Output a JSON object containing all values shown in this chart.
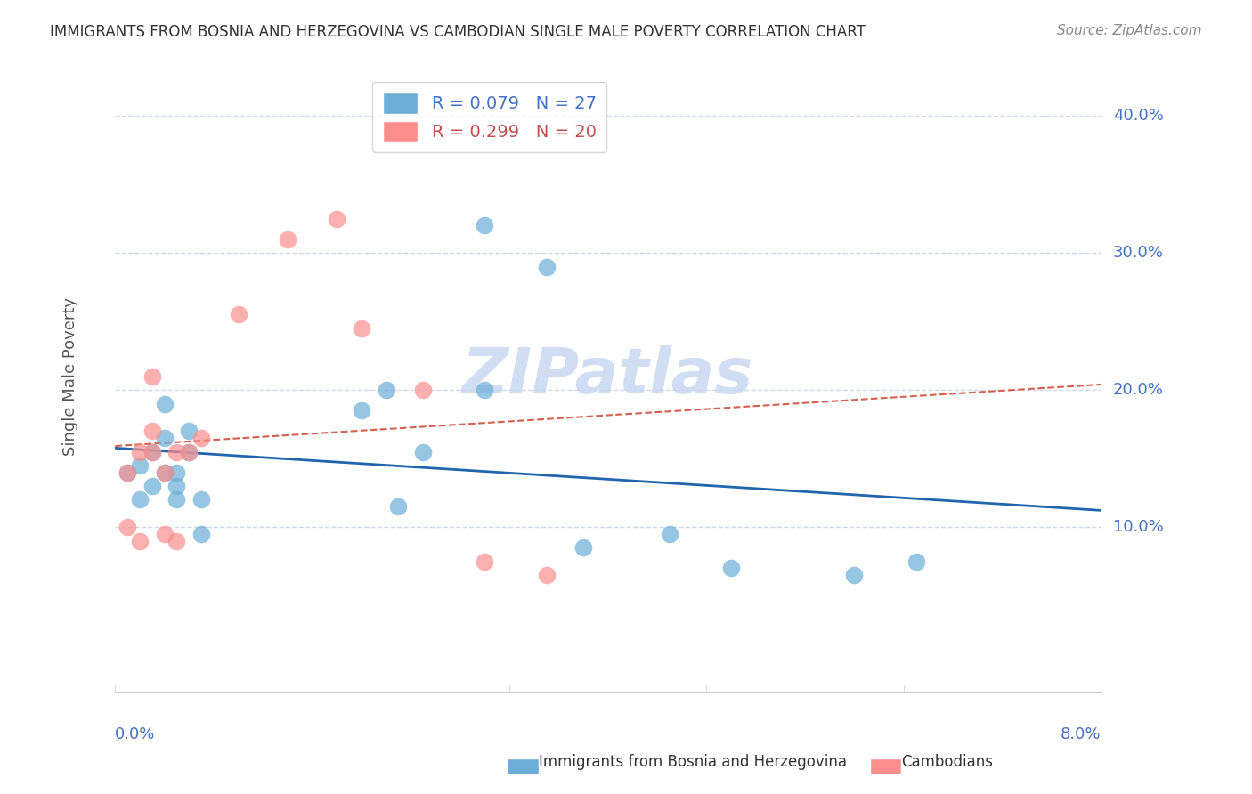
{
  "title": "IMMIGRANTS FROM BOSNIA AND HERZEGOVINA VS CAMBODIAN SINGLE MALE POVERTY CORRELATION CHART",
  "source": "Source: ZipAtlas.com",
  "xlabel_bottom_left": "0.0%",
  "xlabel_bottom_right": "8.0%",
  "ylabel": "Single Male Poverty",
  "y_tick_labels": [
    "10.0%",
    "20.0%",
    "30.0%",
    "40.0%"
  ],
  "y_tick_values": [
    0.1,
    0.2,
    0.3,
    0.4
  ],
  "x_min": 0.0,
  "x_max": 0.08,
  "y_min": -0.02,
  "y_max": 0.44,
  "blue_color": "#6baed6",
  "pink_color": "#fc8d8d",
  "blue_line_color": "#2166ac",
  "pink_line_color": "#d6604d",
  "grid_color": "#d0d8e8",
  "watermark_color": "#c8d8f0",
  "legend_text_blue": "#4472c4",
  "legend_text_pink": "#c0504d",
  "R_blue": 0.079,
  "N_blue": 27,
  "R_pink": 0.299,
  "N_pink": 20,
  "blue_x": [
    0.001,
    0.002,
    0.002,
    0.003,
    0.003,
    0.004,
    0.004,
    0.004,
    0.005,
    0.005,
    0.005,
    0.006,
    0.006,
    0.007,
    0.007,
    0.02,
    0.022,
    0.023,
    0.025,
    0.03,
    0.03,
    0.035,
    0.038,
    0.045,
    0.05,
    0.06,
    0.065
  ],
  "blue_y": [
    0.14,
    0.12,
    0.145,
    0.13,
    0.155,
    0.14,
    0.19,
    0.165,
    0.14,
    0.13,
    0.12,
    0.155,
    0.17,
    0.12,
    0.095,
    0.185,
    0.2,
    0.115,
    0.155,
    0.2,
    0.32,
    0.29,
    0.085,
    0.095,
    0.07,
    0.065,
    0.075
  ],
  "pink_x": [
    0.001,
    0.001,
    0.002,
    0.002,
    0.003,
    0.003,
    0.003,
    0.004,
    0.004,
    0.005,
    0.005,
    0.006,
    0.007,
    0.01,
    0.014,
    0.018,
    0.02,
    0.025,
    0.03,
    0.035
  ],
  "pink_y": [
    0.14,
    0.1,
    0.09,
    0.155,
    0.155,
    0.17,
    0.21,
    0.14,
    0.095,
    0.155,
    0.09,
    0.155,
    0.165,
    0.255,
    0.31,
    0.325,
    0.245,
    0.2,
    0.075,
    0.065
  ]
}
